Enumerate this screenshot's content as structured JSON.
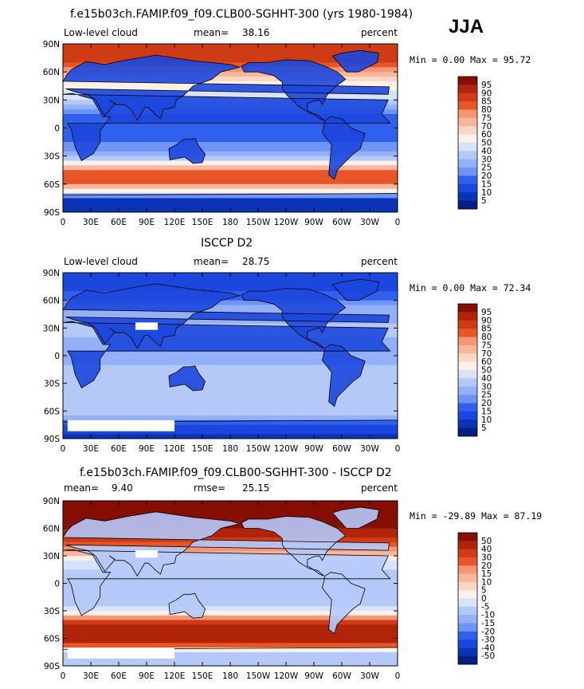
{
  "season": "JJA",
  "colors": {
    "ramp_abs": [
      "#041e86",
      "#0b33b7",
      "#1c47de",
      "#2f60ee",
      "#4b79f3",
      "#6e95f6",
      "#93b0f8",
      "#b5c9f9",
      "#d8e2fb",
      "#fbf1e9",
      "#fad6c4",
      "#f8b79c",
      "#f69574",
      "#f3764f",
      "#e85628",
      "#cf3b14",
      "#b02409",
      "#870e02"
    ],
    "ramp_diff": [
      "#041e86",
      "#0b33b7",
      "#1c47de",
      "#2f60ee",
      "#4b79f3",
      "#6e95f6",
      "#93b0f8",
      "#b5c9f9",
      "#d8e2fb",
      "#fbf1e9",
      "#fad6c4",
      "#f8b79c",
      "#f69574",
      "#f3764f",
      "#e85628",
      "#cf3b14",
      "#b02409",
      "#870e02"
    ],
    "land_mask": "#ffffff"
  },
  "chart_data": [
    {
      "type": "heatmap",
      "title": "f.e15b03ch.FAMIP.f09_f09.CLB00-SGHHT-300 (yrs 1980-1984)",
      "left_label": "Low-level cloud",
      "mean_label": "mean=",
      "mean_value": "38.16",
      "units": "percent",
      "stats": "Min =    0.00 Max =   95.72",
      "min": 0.0,
      "max": 95.72,
      "x_ticks": [
        "0",
        "30E",
        "60E",
        "90E",
        "120E",
        "150E",
        "180",
        "150W",
        "120W",
        "90W",
        "60W",
        "30W",
        "0"
      ],
      "y_ticks": [
        "90N",
        "60N",
        "30N",
        "0",
        "30S",
        "60S",
        "90S"
      ],
      "xlim": [
        0,
        360
      ],
      "ylim": [
        -90,
        90
      ],
      "colorbar_levels": [
        "95",
        "90",
        "85",
        "80",
        "75",
        "70",
        "60",
        "50",
        "40",
        "30",
        "25",
        "20",
        "15",
        "10",
        "5"
      ],
      "zonal_profile": [
        {
          "lat": -90,
          "value": 5
        },
        {
          "lat": -75,
          "value": 8
        },
        {
          "lat": -65,
          "value": 65
        },
        {
          "lat": -55,
          "value": 85
        },
        {
          "lat": -45,
          "value": 80
        },
        {
          "lat": -35,
          "value": 40
        },
        {
          "lat": -25,
          "value": 25
        },
        {
          "lat": -15,
          "value": 20
        },
        {
          "lat": -5,
          "value": 18
        },
        {
          "lat": 5,
          "value": 15
        },
        {
          "lat": 15,
          "value": 20
        },
        {
          "lat": 25,
          "value": 30
        },
        {
          "lat": 35,
          "value": 45
        },
        {
          "lat": 45,
          "value": 55
        },
        {
          "lat": 55,
          "value": 70
        },
        {
          "lat": 65,
          "value": 80
        },
        {
          "lat": 75,
          "value": 88
        },
        {
          "lat": 90,
          "value": 90
        }
      ]
    },
    {
      "type": "heatmap",
      "title": "ISCCP D2",
      "left_label": "Low-level cloud",
      "mean_label": "mean=",
      "mean_value": "28.75",
      "units": "percent",
      "stats": "Min =    0.00 Max =   72.34",
      "min": 0.0,
      "max": 72.34,
      "x_ticks": [
        "0",
        "30E",
        "60E",
        "90E",
        "120E",
        "150E",
        "180",
        "150W",
        "120W",
        "90W",
        "60W",
        "30W",
        "0"
      ],
      "y_ticks": [
        "90N",
        "60N",
        "30N",
        "0",
        "30S",
        "60S",
        "90S"
      ],
      "xlim": [
        0,
        360
      ],
      "ylim": [
        -90,
        90
      ],
      "colorbar_levels": [
        "95",
        "90",
        "85",
        "80",
        "75",
        "70",
        "60",
        "50",
        "40",
        "30",
        "25",
        "20",
        "15",
        "10",
        "5"
      ],
      "zonal_profile": [
        {
          "lat": -90,
          "value": 8
        },
        {
          "lat": -75,
          "value": 15
        },
        {
          "lat": -65,
          "value": 30
        },
        {
          "lat": -55,
          "value": 38
        },
        {
          "lat": -45,
          "value": 40
        },
        {
          "lat": -35,
          "value": 38
        },
        {
          "lat": -25,
          "value": 35
        },
        {
          "lat": -15,
          "value": 32
        },
        {
          "lat": -5,
          "value": 28
        },
        {
          "lat": 5,
          "value": 25
        },
        {
          "lat": 15,
          "value": 28
        },
        {
          "lat": 25,
          "value": 32
        },
        {
          "lat": 35,
          "value": 30
        },
        {
          "lat": 45,
          "value": 28
        },
        {
          "lat": 55,
          "value": 25
        },
        {
          "lat": 65,
          "value": 18
        },
        {
          "lat": 75,
          "value": 12
        },
        {
          "lat": 90,
          "value": 10
        }
      ]
    },
    {
      "type": "heatmap",
      "title": "f.e15b03ch.FAMIP.f09_f09.CLB00-SGHHT-300 - ISCCP D2",
      "left_label": "",
      "mean_label": "mean=",
      "mean_value": "9.40",
      "rmse_label": "rmse=",
      "rmse_value": "25.15",
      "units": "percent",
      "stats": "Min = -29.89 Max =   87.19",
      "min": -29.89,
      "max": 87.19,
      "x_ticks": [
        "0",
        "30E",
        "60E",
        "90E",
        "120E",
        "150E",
        "180",
        "150W",
        "120W",
        "90W",
        "60W",
        "30W",
        "0"
      ],
      "y_ticks": [
        "90N",
        "60N",
        "30N",
        "0",
        "30S",
        "60S",
        "90S"
      ],
      "xlim": [
        0,
        360
      ],
      "ylim": [
        -90,
        90
      ],
      "colorbar_levels": [
        "50",
        "40",
        "30",
        "20",
        "15",
        "10",
        "5",
        "0",
        "-5",
        "-10",
        "-15",
        "-20",
        "-30",
        "-40",
        "-50"
      ],
      "zonal_profile": [
        {
          "lat": -90,
          "value": -5
        },
        {
          "lat": -75,
          "value": -10
        },
        {
          "lat": -65,
          "value": 40
        },
        {
          "lat": -55,
          "value": 50
        },
        {
          "lat": -45,
          "value": 45
        },
        {
          "lat": -35,
          "value": 5
        },
        {
          "lat": -25,
          "value": -8
        },
        {
          "lat": -15,
          "value": -10
        },
        {
          "lat": -5,
          "value": -8
        },
        {
          "lat": 5,
          "value": -10
        },
        {
          "lat": 15,
          "value": -5
        },
        {
          "lat": 25,
          "value": 0
        },
        {
          "lat": 35,
          "value": 15
        },
        {
          "lat": 45,
          "value": 25
        },
        {
          "lat": 55,
          "value": 45
        },
        {
          "lat": 65,
          "value": 60
        },
        {
          "lat": 75,
          "value": 75
        },
        {
          "lat": 90,
          "value": 80
        }
      ]
    }
  ]
}
